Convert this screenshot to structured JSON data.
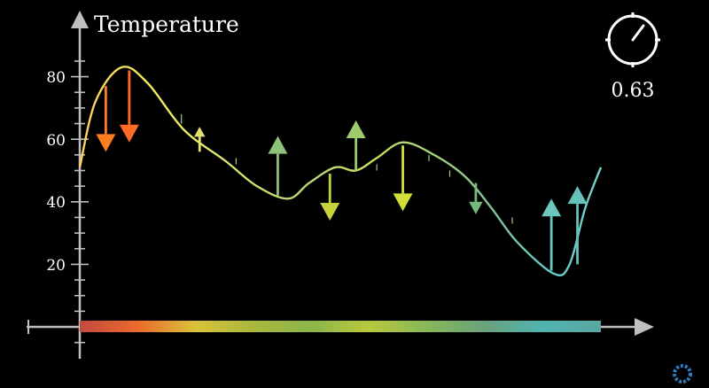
{
  "y_axis_label": "Temperature",
  "y_ticks": [
    "20",
    "40",
    "60",
    "80"
  ],
  "clock": {
    "icon": "clock-icon",
    "time_value": "0.63"
  },
  "corner_logo": "spinner-logo-icon",
  "chart_data": {
    "type": "line",
    "title": "",
    "ylabel": "Temperature",
    "xlabel": "",
    "ylim": [
      0,
      100
    ],
    "yticks": [
      20,
      40,
      60,
      80
    ],
    "grid": false,
    "series": [
      {
        "x": [
          0.0,
          0.03,
          0.08,
          0.13,
          0.2,
          0.28,
          0.34,
          0.4,
          0.44,
          0.49,
          0.53,
          0.57,
          0.62,
          0.68,
          0.74,
          0.79,
          0.84,
          0.91,
          0.94,
          0.97,
          1.0
        ],
        "y": [
          51,
          72,
          83,
          78,
          63,
          53,
          45,
          41,
          46,
          51,
          50,
          54,
          59,
          55,
          48,
          38,
          27,
          17,
          20,
          38,
          51
        ]
      }
    ],
    "arrows": [
      {
        "x": 0.05,
        "y": 77,
        "dy": -21,
        "color": "#ff7d22"
      },
      {
        "x": 0.095,
        "y": 82,
        "dy": -23,
        "color": "#ff6a26"
      },
      {
        "x": 0.23,
        "y": 56,
        "dy": 8,
        "color": "#e4e170"
      },
      {
        "x": 0.38,
        "y": 42,
        "dy": 19,
        "color": "#8fc279"
      },
      {
        "x": 0.48,
        "y": 49,
        "dy": -15,
        "color": "#c6d13c"
      },
      {
        "x": 0.53,
        "y": 50,
        "dy": 16,
        "color": "#9ecb6c"
      },
      {
        "x": 0.62,
        "y": 58,
        "dy": -21,
        "color": "#d2df39"
      },
      {
        "x": 0.76,
        "y": 46,
        "dy": -10,
        "color": "#77b978"
      },
      {
        "x": 0.905,
        "y": 18,
        "dy": 23,
        "color": "#6cc7bc"
      },
      {
        "x": 0.955,
        "y": 20,
        "dy": 25,
        "color": "#66c1b9"
      }
    ],
    "gradient_colors": [
      "#c04a3e",
      "#ec6a2c",
      "#d9c23a",
      "#a9b83c",
      "#8ab64a",
      "#b9c83c",
      "#86b858",
      "#6aa27d",
      "#50b4b0",
      "#5aa6a2"
    ]
  }
}
